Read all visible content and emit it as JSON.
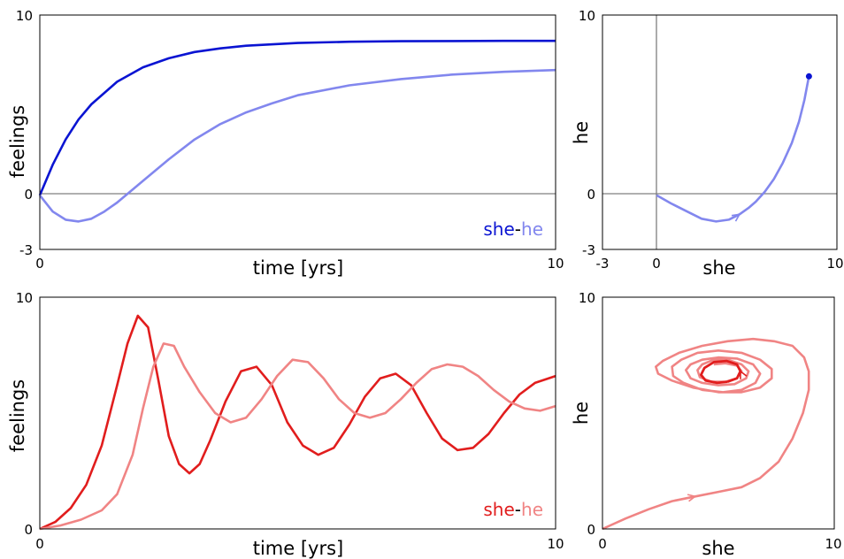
{
  "colors": {
    "she_dark_blue": "#0a14d2",
    "he_light_blue": "#8287ee",
    "she_red": "#e11d1d",
    "he_light_red": "#f08484",
    "zero_line": "#7f7f7f",
    "frame": "#000000"
  },
  "chart_data": [
    {
      "id": "top-left",
      "type": "line",
      "xlabel": "time [yrs]",
      "ylabel": "feelings",
      "xlim": [
        0,
        10
      ],
      "ylim": [
        -3,
        10
      ],
      "xticks": [
        "0",
        "10"
      ],
      "yticks": [
        "-3",
        "0",
        "10"
      ],
      "legend": {
        "she": "she",
        "sep": "-",
        "he": "he"
      },
      "series": [
        {
          "name": "she",
          "color": "she_dark_blue",
          "x": [
            0,
            0.25,
            0.5,
            0.75,
            1,
            1.5,
            2,
            2.5,
            3,
            3.5,
            4,
            5,
            6,
            7,
            8,
            9,
            10
          ],
          "y": [
            0,
            1.7,
            3.1,
            4.2,
            5.05,
            6.3,
            7.1,
            7.6,
            7.95,
            8.15,
            8.3,
            8.45,
            8.52,
            8.55,
            8.56,
            8.57,
            8.57
          ]
        },
        {
          "name": "he",
          "color": "he_light_blue",
          "x": [
            0,
            0.25,
            0.5,
            0.75,
            1,
            1.25,
            1.5,
            2,
            2.5,
            3,
            3.5,
            4,
            4.5,
            5,
            6,
            7,
            8,
            9,
            10
          ],
          "y": [
            0,
            -0.9,
            -1.35,
            -1.45,
            -1.3,
            -0.9,
            -0.4,
            0.8,
            2.0,
            3.1,
            3.95,
            4.6,
            5.1,
            5.55,
            6.1,
            6.45,
            6.7,
            6.85,
            6.95
          ]
        }
      ]
    },
    {
      "id": "top-right",
      "type": "line",
      "xlabel": "she",
      "ylabel": "he",
      "xlim": [
        -3,
        10
      ],
      "ylim": [
        -3,
        10
      ],
      "xticks": [
        "-3",
        "0",
        "10"
      ],
      "yticks": [
        "-3",
        "0",
        "10"
      ],
      "series": [
        {
          "name": "trajectory",
          "color": "he_light_blue",
          "x": [
            0,
            0.8,
            1.7,
            2.5,
            3.3,
            4.0,
            4.6,
            5.1,
            5.5,
            6.0,
            6.5,
            7.0,
            7.5,
            7.9,
            8.2,
            8.35,
            8.45
          ],
          "y": [
            0,
            -0.45,
            -0.9,
            -1.3,
            -1.45,
            -1.35,
            -1.05,
            -0.7,
            -0.35,
            0.2,
            0.9,
            1.8,
            2.9,
            4.1,
            5.3,
            6.1,
            6.6
          ]
        }
      ],
      "end_point": {
        "x": 8.45,
        "y": 6.6
      },
      "arrow_at_index": 6
    },
    {
      "id": "bottom-left",
      "type": "line",
      "xlabel": "time [yrs]",
      "ylabel": "feelings",
      "xlim": [
        0,
        10
      ],
      "ylim": [
        0,
        10
      ],
      "xticks": [
        "0",
        "10"
      ],
      "yticks": [
        "0",
        "10"
      ],
      "legend": {
        "she": "she",
        "sep": "-",
        "he": "he"
      },
      "series": [
        {
          "name": "she",
          "color": "she_red",
          "x": [
            0,
            0.3,
            0.6,
            0.9,
            1.2,
            1.5,
            1.7,
            1.9,
            2.1,
            2.3,
            2.5,
            2.7,
            2.9,
            3.1,
            3.3,
            3.6,
            3.9,
            4.2,
            4.5,
            4.8,
            5.1,
            5.4,
            5.7,
            6.0,
            6.3,
            6.6,
            6.9,
            7.2,
            7.5,
            7.8,
            8.1,
            8.4,
            8.7,
            9.0,
            9.3,
            9.6,
            10
          ],
          "y": [
            0,
            0.3,
            0.9,
            1.9,
            3.6,
            6.2,
            8.0,
            9.2,
            8.7,
            6.4,
            4.0,
            2.8,
            2.4,
            2.8,
            3.8,
            5.5,
            6.8,
            7.0,
            6.2,
            4.6,
            3.6,
            3.2,
            3.5,
            4.5,
            5.7,
            6.5,
            6.7,
            6.2,
            5.0,
            3.9,
            3.4,
            3.5,
            4.1,
            5.0,
            5.8,
            6.3,
            6.6
          ]
        },
        {
          "name": "he",
          "color": "he_light_red",
          "x": [
            0,
            0.4,
            0.8,
            1.2,
            1.5,
            1.8,
            2.0,
            2.2,
            2.4,
            2.6,
            2.8,
            3.1,
            3.4,
            3.7,
            4.0,
            4.3,
            4.6,
            4.9,
            5.2,
            5.5,
            5.8,
            6.1,
            6.4,
            6.7,
            7.0,
            7.3,
            7.6,
            7.9,
            8.2,
            8.5,
            8.8,
            9.1,
            9.4,
            9.7,
            10
          ],
          "y": [
            0,
            0.15,
            0.4,
            0.8,
            1.5,
            3.2,
            5.2,
            7.0,
            8.0,
            7.9,
            7.0,
            5.9,
            5.0,
            4.6,
            4.8,
            5.6,
            6.6,
            7.3,
            7.2,
            6.5,
            5.6,
            5.0,
            4.8,
            5.0,
            5.6,
            6.3,
            6.9,
            7.1,
            7.0,
            6.6,
            6.0,
            5.5,
            5.2,
            5.1,
            5.3
          ]
        }
      ]
    },
    {
      "id": "bottom-right",
      "type": "line",
      "xlabel": "she",
      "ylabel": "he",
      "xlim": [
        0,
        10
      ],
      "ylim": [
        0,
        10
      ],
      "xticks": [
        "0",
        "10"
      ],
      "yticks": [
        "0",
        "10"
      ],
      "series": [
        {
          "name": "spiral",
          "color": "he_light_red",
          "x": [
            0,
            1.0,
            2.0,
            3.0,
            4.0,
            5.0,
            6.0,
            6.8,
            7.6,
            8.2,
            8.65,
            8.9,
            8.9,
            8.7,
            8.2,
            7.4,
            6.5,
            5.4,
            4.3,
            3.3,
            2.6,
            2.3,
            2.4,
            3.0,
            3.9,
            5.0,
            6.0,
            6.8,
            7.3,
            7.3,
            6.8,
            6.0,
            5.0,
            4.1,
            3.4,
            3.0,
            3.05,
            3.5,
            4.3,
            5.2,
            6.0,
            6.6,
            6.8,
            6.5,
            5.8,
            5.0,
            4.3,
            3.8,
            3.6,
            3.8,
            4.3,
            5.0,
            5.7,
            6.2,
            6.3,
            6.0,
            5.4,
            4.8,
            4.3,
            4.1,
            4.2,
            4.7,
            5.3,
            5.8,
            6.0,
            5.8,
            5.3,
            4.8
          ],
          "y": [
            0,
            0.45,
            0.85,
            1.2,
            1.4,
            1.6,
            1.8,
            2.2,
            2.9,
            3.9,
            5.0,
            6.0,
            6.8,
            7.4,
            7.9,
            8.1,
            8.2,
            8.1,
            7.9,
            7.6,
            7.25,
            7.0,
            6.7,
            6.4,
            6.1,
            5.9,
            5.9,
            6.1,
            6.5,
            6.9,
            7.3,
            7.6,
            7.7,
            7.6,
            7.3,
            7.0,
            6.6,
            6.3,
            6.0,
            5.9,
            6.0,
            6.3,
            6.7,
            7.1,
            7.35,
            7.4,
            7.3,
            7.1,
            6.85,
            6.5,
            6.3,
            6.2,
            6.25,
            6.5,
            6.8,
            7.1,
            7.3,
            7.3,
            7.1,
            6.85,
            6.55,
            6.35,
            6.35,
            6.5,
            6.8,
            7.05,
            7.15,
            7.1
          ]
        },
        {
          "name": "limit-cycle",
          "color": "she_red",
          "x": [
            5.4,
            5.8,
            5.95,
            5.8,
            5.35,
            4.8,
            4.4,
            4.25,
            4.45,
            4.95,
            5.4
          ],
          "y": [
            6.35,
            6.5,
            6.8,
            7.1,
            7.25,
            7.2,
            6.95,
            6.65,
            6.4,
            6.3,
            6.35
          ]
        }
      ],
      "arrow_at_index": 4
    }
  ]
}
